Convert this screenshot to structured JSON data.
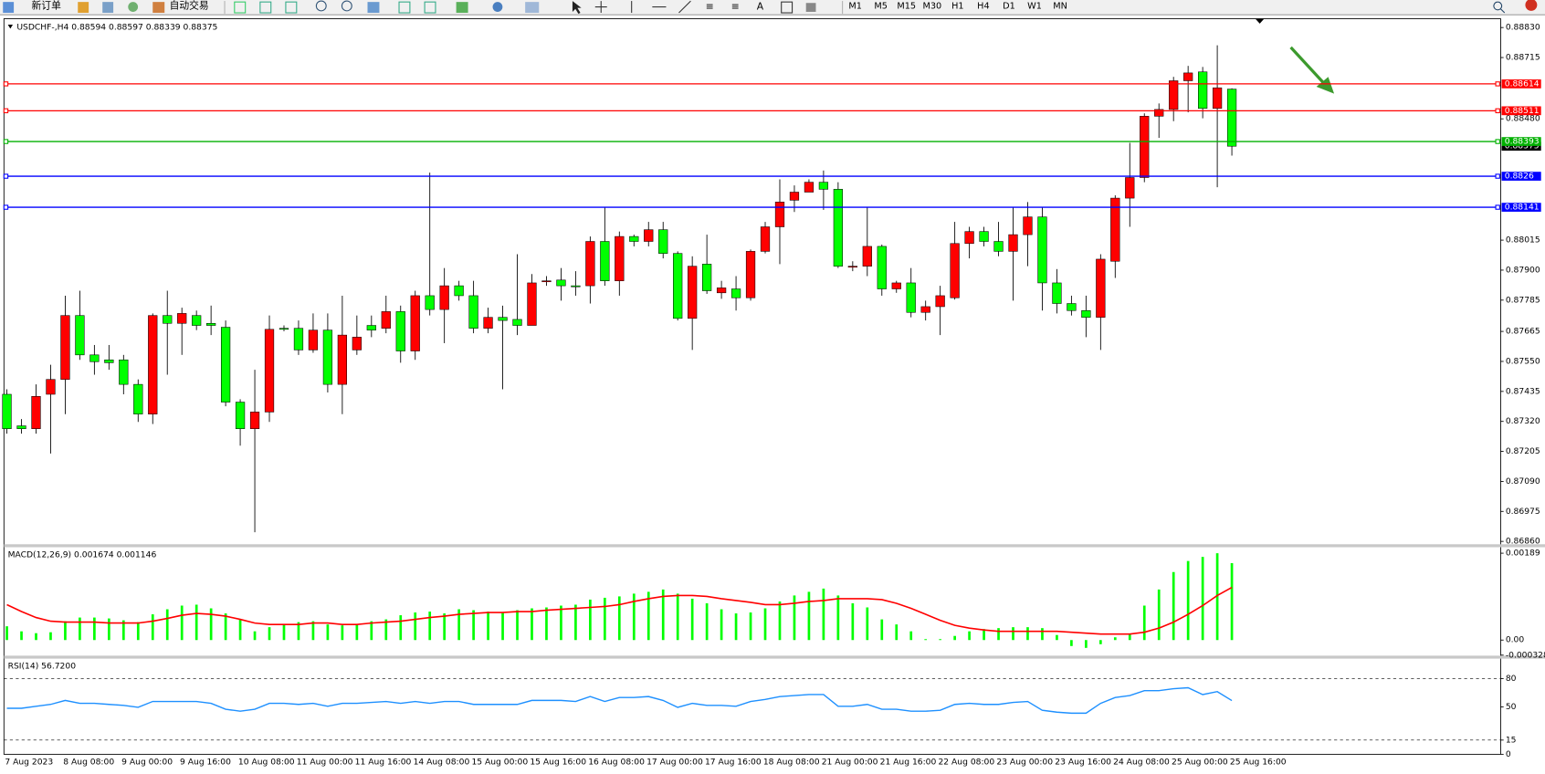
{
  "toolbar": {
    "buttons": [
      "新订单",
      "自动交易"
    ],
    "timeframes": [
      "M1",
      "M5",
      "M15",
      "M30",
      "H1",
      "H4",
      "D1",
      "W1",
      "MN"
    ]
  },
  "chart_data": [
    {
      "type": "candlestick",
      "title": "USDCHF-,H4 0.88594 0.88597 0.88339 0.88375",
      "up_color": "#ff0000",
      "down_color": "#00ff00",
      "wick_color": "#000000",
      "grid": false,
      "categories": [
        "7 Aug 2023",
        null,
        null,
        null,
        "8 Aug 08:00",
        null,
        null,
        null,
        "9 Aug 00:00",
        null,
        null,
        null,
        "9 Aug 16:00",
        null,
        null,
        null,
        "10 Aug 08:00",
        null,
        null,
        null,
        "11 Aug 00:00",
        null,
        null,
        null,
        "11 Aug 16:00",
        null,
        null,
        null,
        "14 Aug 08:00",
        null,
        null,
        null,
        "15 Aug 00:00",
        null,
        null,
        null,
        "15 Aug 16:00",
        null,
        null,
        null,
        "16 Aug 08:00",
        null,
        null,
        null,
        "17 Aug 00:00",
        null,
        null,
        null,
        "17 Aug 16:00",
        null,
        null,
        null,
        "18 Aug 08:00",
        null,
        null,
        null,
        "21 Aug 00:00",
        null,
        null,
        null,
        "21 Aug 16:00",
        null,
        null,
        null,
        "22 Aug 08:00",
        null,
        null,
        null,
        "23 Aug 00:00",
        null,
        null,
        null,
        "23 Aug 16:00",
        null,
        null,
        null,
        "24 Aug 08:00",
        null,
        null,
        null,
        "25 Aug 00:00",
        null,
        null,
        null,
        "25 Aug 16:00"
      ],
      "open": [
        0.87424,
        0.87303,
        0.87292,
        0.87424,
        0.87481,
        0.87726,
        0.87575,
        0.87556,
        0.87556,
        0.87462,
        0.87348,
        0.87726,
        0.87696,
        0.87726,
        0.87696,
        0.87681,
        0.87394,
        0.87292,
        0.87356,
        0.87677,
        0.87677,
        0.87594,
        0.8767,
        0.87462,
        0.87594,
        0.87688,
        0.87677,
        0.87741,
        0.8759,
        0.87802,
        0.87749,
        0.8784,
        0.87802,
        0.87677,
        0.87719,
        0.87711,
        0.87688,
        0.87859,
        0.87862,
        0.8784,
        0.8784,
        0.8801,
        0.87859,
        0.88029,
        0.8801,
        0.88055,
        0.87964,
        0.87715,
        0.87923,
        0.87813,
        0.87828,
        0.87794,
        0.87972,
        0.88066,
        0.88168,
        0.88199,
        0.88237,
        0.8821,
        0.87915,
        0.87915,
        0.87991,
        0.87828,
        0.87851,
        0.87738,
        0.8776,
        0.87794,
        0.88002,
        0.88048,
        0.8801,
        0.87972,
        0.88036,
        0.88104,
        0.87851,
        0.87772,
        0.87745,
        0.87719,
        0.87934,
        0.88176,
        0.88255,
        0.8849,
        0.88516,
        0.88626,
        0.8866,
        0.8852,
        0.88594
      ],
      "high": [
        0.87443,
        0.87329,
        0.87462,
        0.87537,
        0.87802,
        0.87821,
        0.87613,
        0.87613,
        0.87575,
        0.87481,
        0.87734,
        0.87821,
        0.87756,
        0.87745,
        0.87764,
        0.87707,
        0.87405,
        0.87518,
        0.87726,
        0.87688,
        0.87707,
        0.87734,
        0.87734,
        0.87802,
        0.87726,
        0.87726,
        0.87802,
        0.87764,
        0.87821,
        0.88274,
        0.87908,
        0.87859,
        0.87859,
        0.87756,
        0.87764,
        0.87961,
        0.87885,
        0.87877,
        0.87908,
        0.87896,
        0.88029,
        0.88142,
        0.88048,
        0.88036,
        0.88085,
        0.88085,
        0.87972,
        0.87953,
        0.88036,
        0.87859,
        0.87877,
        0.87979,
        0.88085,
        0.88248,
        0.88225,
        0.88248,
        0.88282,
        0.88237,
        0.87934,
        0.88142,
        0.87998,
        0.87859,
        0.87908,
        0.87783,
        0.8784,
        0.88085,
        0.88066,
        0.88066,
        0.88085,
        0.88142,
        0.88161,
        0.88142,
        0.87904,
        0.87802,
        0.87802,
        0.87961,
        0.88187,
        0.88388,
        0.88501,
        0.88539,
        0.88641,
        0.88683,
        0.88679,
        0.88762,
        0.88597
      ],
      "low": [
        0.87273,
        0.87273,
        0.87273,
        0.87197,
        0.87348,
        0.87556,
        0.87499,
        0.87518,
        0.87424,
        0.87318,
        0.8731,
        0.87499,
        0.87575,
        0.8767,
        0.87651,
        0.87378,
        0.87227,
        0.86895,
        0.87318,
        0.87666,
        0.87575,
        0.87583,
        0.87431,
        0.87348,
        0.87575,
        0.87643,
        0.87658,
        0.87545,
        0.87556,
        0.87726,
        0.8762,
        0.87783,
        0.87658,
        0.87658,
        0.87443,
        0.87651,
        0.87688,
        0.8784,
        0.87783,
        0.87802,
        0.87772,
        0.8784,
        0.87802,
        0.87991,
        0.87991,
        0.87945,
        0.87707,
        0.87594,
        0.87809,
        0.8779,
        0.87745,
        0.87783,
        0.87964,
        0.87923,
        0.88123,
        0.88199,
        0.88131,
        0.87908,
        0.87896,
        0.87877,
        0.87802,
        0.87813,
        0.87719,
        0.87707,
        0.87651,
        0.87787,
        0.87945,
        0.87991,
        0.87953,
        0.87783,
        0.87915,
        0.87745,
        0.87734,
        0.87726,
        0.87643,
        0.87594,
        0.8787,
        0.88066,
        0.88237,
        0.88407,
        0.88471,
        0.88505,
        0.88482,
        0.88218,
        0.88339
      ],
      "close": [
        0.87292,
        0.87292,
        0.87416,
        0.87481,
        0.87726,
        0.87575,
        0.87549,
        0.87545,
        0.87462,
        0.87348,
        0.87726,
        0.87696,
        0.87734,
        0.87688,
        0.87688,
        0.87394,
        0.87292,
        0.87356,
        0.87673,
        0.87673,
        0.87594,
        0.8767,
        0.87462,
        0.87651,
        0.87643,
        0.8767,
        0.87741,
        0.8759,
        0.87802,
        0.87749,
        0.8784,
        0.87802,
        0.87677,
        0.87719,
        0.87707,
        0.87688,
        0.87851,
        0.87859,
        0.8784,
        0.87836,
        0.8801,
        0.87859,
        0.88029,
        0.8801,
        0.88055,
        0.87964,
        0.87715,
        0.87915,
        0.87821,
        0.87832,
        0.87794,
        0.87972,
        0.88066,
        0.88161,
        0.88199,
        0.88237,
        0.8821,
        0.87915,
        0.87915,
        0.87991,
        0.87828,
        0.87851,
        0.87738,
        0.8776,
        0.87802,
        0.88002,
        0.88048,
        0.8801,
        0.87972,
        0.88036,
        0.88104,
        0.87851,
        0.87772,
        0.87745,
        0.87719,
        0.87942,
        0.88176,
        0.88255,
        0.8849,
        0.88516,
        0.88626,
        0.88656,
        0.8852,
        0.88599,
        0.88375
      ],
      "hlines": [
        {
          "value": 0.88614,
          "color": "#ff0000"
        },
        {
          "value": 0.88511,
          "color": "#ff0000"
        },
        {
          "value": 0.88393,
          "color": "#00b000"
        },
        {
          "value": 0.8826,
          "color": "#0000ff"
        },
        {
          "value": 0.88141,
          "color": "#0000ff"
        }
      ],
      "ylim": [
        0.86849,
        0.8886
      ],
      "yticks": [
        {
          "value": 0.8883,
          "label": "0.88830"
        },
        {
          "value": 0.88715,
          "label": "0.88715"
        },
        {
          "value": 0.8848,
          "label": "0.88480"
        },
        {
          "value": 0.88015,
          "label": "0.88015"
        },
        {
          "value": 0.879,
          "label": "0.87900"
        },
        {
          "value": 0.87785,
          "label": "0.87785"
        },
        {
          "value": 0.87665,
          "label": "0.87665"
        },
        {
          "value": 0.8755,
          "label": "0.87550"
        },
        {
          "value": 0.87435,
          "label": "0.87435"
        },
        {
          "value": 0.8732,
          "label": "0.87320"
        },
        {
          "value": 0.87205,
          "label": "0.87205"
        },
        {
          "value": 0.8709,
          "label": "0.87090"
        },
        {
          "value": 0.86975,
          "label": "0.86975"
        },
        {
          "value": 0.8686,
          "label": "0.86860"
        }
      ]
    },
    {
      "type": "macd",
      "title": "MACD(12,26,9) 0.001674 0.001146",
      "histogram": {
        "color": "#00ff00",
        "values": [
          0.0003,
          0.00019,
          0.00015,
          0.00017,
          0.00041,
          0.00049,
          0.00049,
          0.00047,
          0.00043,
          0.00039,
          0.00056,
          0.00067,
          0.00075,
          0.00077,
          0.00069,
          0.00058,
          0.00045,
          0.00019,
          0.00028,
          0.00034,
          0.00039,
          0.00041,
          0.00034,
          0.00032,
          0.00034,
          0.00041,
          0.00045,
          0.00054,
          0.0006,
          0.00062,
          0.00058,
          0.00067,
          0.00065,
          0.00062,
          0.0006,
          0.00065,
          0.00069,
          0.00071,
          0.00075,
          0.00077,
          0.00088,
          0.00092,
          0.00095,
          0.00101,
          0.00105,
          0.0011,
          0.00101,
          0.0009,
          0.0008,
          0.00067,
          0.00058,
          0.0006,
          0.00069,
          0.00084,
          0.00097,
          0.00105,
          0.00112,
          0.00097,
          0.0008,
          0.00071,
          0.00045,
          0.00034,
          0.00019,
          2e-05,
          2e-05,
          9e-05,
          0.00019,
          0.00024,
          0.00026,
          0.00028,
          0.00028,
          0.00026,
          0.00011,
          -0.00013,
          -0.00017,
          -9e-05,
          6e-05,
          0.00013,
          0.00075,
          0.0011,
          0.00148,
          0.00172,
          0.00181,
          0.00189,
          0.001674
        ]
      },
      "signal": {
        "color": "#ff0000",
        "values": [
          0.00077,
          0.00062,
          0.00049,
          0.00041,
          0.00039,
          0.00039,
          0.00039,
          0.00037,
          0.00037,
          0.00037,
          0.00041,
          0.00047,
          0.00054,
          0.00058,
          0.00056,
          0.00052,
          0.00045,
          0.00037,
          0.00034,
          0.00034,
          0.00034,
          0.00037,
          0.00037,
          0.00034,
          0.00034,
          0.00037,
          0.00039,
          0.00041,
          0.00045,
          0.00049,
          0.00052,
          0.00056,
          0.00058,
          0.0006,
          0.0006,
          0.00062,
          0.00062,
          0.00065,
          0.00067,
          0.00069,
          0.00071,
          0.00073,
          0.00077,
          0.00084,
          0.0009,
          0.00095,
          0.00097,
          0.00097,
          0.00095,
          0.0009,
          0.00086,
          0.00082,
          0.00077,
          0.00077,
          0.0008,
          0.00084,
          0.00086,
          0.0009,
          0.0009,
          0.0009,
          0.00088,
          0.0008,
          0.00069,
          0.00056,
          0.00043,
          0.00032,
          0.00026,
          0.00022,
          0.00019,
          0.00019,
          0.00019,
          0.00019,
          0.00019,
          0.00017,
          0.00015,
          0.00013,
          0.00013,
          0.00013,
          0.00017,
          0.00026,
          0.00039,
          0.00056,
          0.00075,
          0.00097,
          0.001146
        ]
      },
      "ylim": [
        -0.00034,
        0.00202
      ],
      "yticks": [
        0.00189,
        {
          "value": 0,
          "label": "0.00"
        },
        -0.000328
      ]
    },
    {
      "type": "line",
      "title": "RSI(14) 56.7200",
      "color": "#1e90ff",
      "values": [
        48.6,
        48.6,
        50.7,
        52.7,
        56.9,
        53.8,
        53.8,
        52.7,
        51.7,
        49.6,
        55.8,
        55.8,
        55.8,
        55.8,
        53.8,
        47.6,
        45.5,
        47.6,
        53.8,
        53.8,
        52.7,
        53.8,
        50.7,
        53.8,
        53.8,
        54.8,
        55.8,
        53.8,
        55.8,
        53.8,
        55.8,
        55.8,
        52.7,
        52.7,
        52.7,
        52.7,
        56.9,
        56.9,
        56.9,
        55.8,
        61.0,
        55.8,
        60.0,
        60.0,
        61.0,
        56.9,
        49.6,
        53.8,
        51.7,
        51.7,
        50.7,
        55.8,
        57.9,
        61.0,
        62.0,
        63.1,
        63.1,
        50.7,
        50.7,
        52.7,
        47.6,
        47.6,
        45.5,
        45.5,
        46.5,
        52.7,
        53.8,
        52.7,
        52.7,
        54.8,
        55.8,
        46.5,
        44.5,
        43.4,
        43.4,
        53.8,
        60.0,
        62.0,
        67.2,
        67.2,
        69.3,
        70.3,
        63.1,
        66.2,
        56.72
      ],
      "levels": [
        80,
        15
      ],
      "ylim": [
        0,
        100
      ],
      "yticks": [
        80,
        50,
        15,
        0
      ]
    }
  ]
}
